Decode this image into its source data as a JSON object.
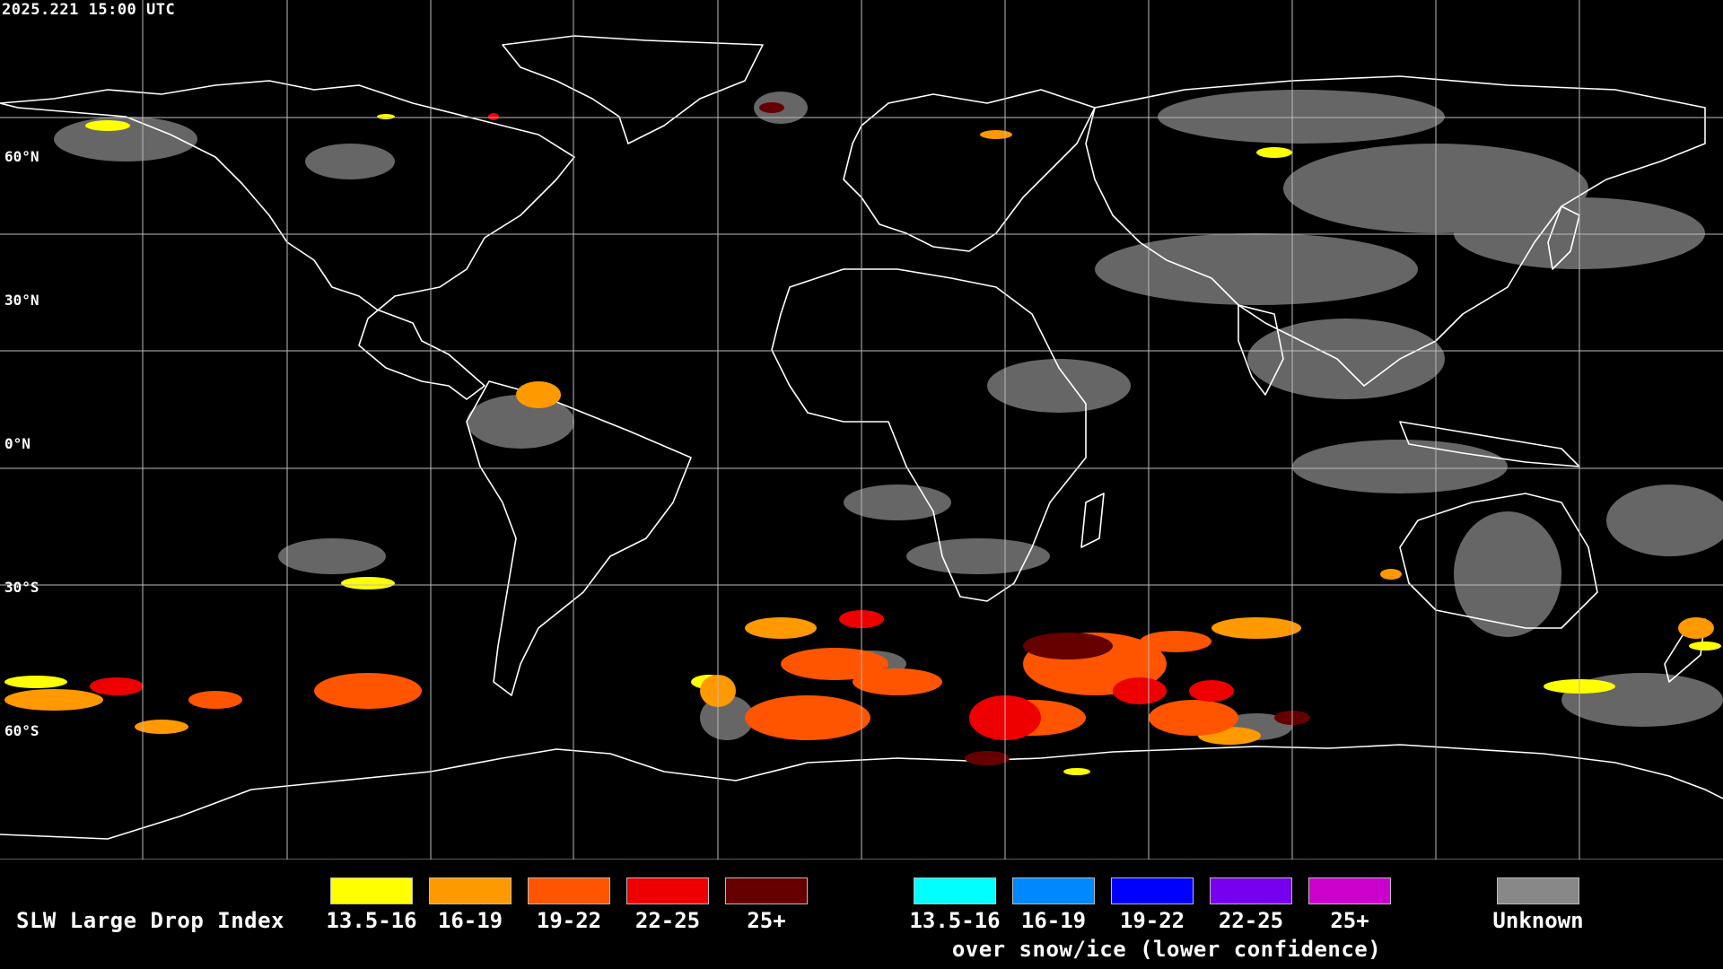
{
  "timestamp": "2025.221 15:00 UTC",
  "lat_labels": [
    "60°N",
    "30°N",
    "0°N",
    "30°S",
    "60°S"
  ],
  "legend": {
    "title": "SLW Large Drop Index",
    "water": [
      {
        "label": "13.5-16",
        "color": "#ffff00"
      },
      {
        "label": "16-19",
        "color": "#ff9900"
      },
      {
        "label": "19-22",
        "color": "#ff5500"
      },
      {
        "label": "22-25",
        "color": "#ee0000"
      },
      {
        "label": "25+",
        "color": "#660000"
      }
    ],
    "snow_ice": [
      {
        "label": "13.5-16",
        "color": "#00ffff"
      },
      {
        "label": "16-19",
        "color": "#0088ff"
      },
      {
        "label": "19-22",
        "color": "#0000ff"
      },
      {
        "label": "22-25",
        "color": "#7700ee"
      },
      {
        "label": "25+",
        "color": "#cc00cc"
      }
    ],
    "snow_ice_note": "over snow/ice (lower confidence)",
    "unknown": {
      "label": "Unknown",
      "color": "#888888"
    }
  }
}
